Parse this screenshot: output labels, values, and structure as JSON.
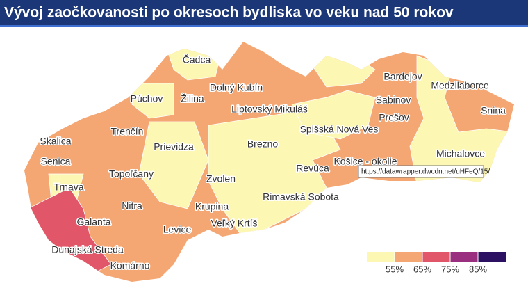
{
  "title": "Vývoj zaočkovanosti po okresoch bydliska vo veku nad 50 rokov",
  "labels": [
    "Čadca",
    "Púchov",
    "Žilina",
    "Dolný Kubín",
    "Liptovský Mikuláš",
    "Bardejov",
    "Medzilaborce",
    "Sabinov",
    "Snina",
    "Prešov",
    "Trenčín",
    "Spišská Nová Ves",
    "Skalica",
    "Prievidza",
    "Brezno",
    "Michalovce",
    "Senica",
    "Košice - okolie",
    "Topoľčany",
    "Revúca",
    "Zvolen",
    "Trnava",
    "Rimavská Sobota",
    "Nitra",
    "Krupina",
    "Galanta",
    "Veľký Krtíš",
    "Levice",
    "Dunajská Streda",
    "Komárno"
  ],
  "legend": {
    "colors": [
      "#fdf7b4",
      "#f4a673",
      "#e2566a",
      "#9a2f7f",
      "#2c1162"
    ],
    "ticks": [
      {
        "value": 55,
        "label": "55%"
      },
      {
        "value": 65,
        "label": "65%"
      },
      {
        "value": 75,
        "label": "75%"
      },
      {
        "value": 85,
        "label": "85%"
      }
    ]
  },
  "tooltip": "https://datawrapper.dwcdn.net/uHFeQ/15/"
}
